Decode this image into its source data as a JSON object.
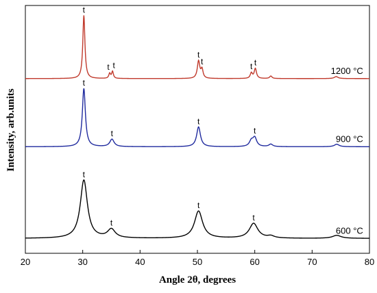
{
  "chart_data": {
    "type": "line",
    "xlabel": "Angle 2θ, degrees",
    "ylabel": "Intensity, arb.units",
    "xlim": [
      20,
      80
    ],
    "xticks": [
      20,
      30,
      40,
      50,
      60,
      70,
      80
    ],
    "y_ticks_shown": false,
    "grid": false,
    "series": [
      {
        "name": "1200 °C",
        "color": "#c0392b",
        "baseline": 0.705,
        "peaks": [
          {
            "x": 30.2,
            "h": 0.255,
            "w": 0.22
          },
          {
            "x": 34.7,
            "h": 0.02,
            "w": 0.18
          },
          {
            "x": 35.2,
            "h": 0.028,
            "w": 0.18
          },
          {
            "x": 50.2,
            "h": 0.07,
            "w": 0.26
          },
          {
            "x": 50.8,
            "h": 0.035,
            "w": 0.22
          },
          {
            "x": 59.4,
            "h": 0.022,
            "w": 0.22
          },
          {
            "x": 60.1,
            "h": 0.04,
            "w": 0.24
          },
          {
            "x": 62.8,
            "h": 0.01,
            "w": 0.25
          },
          {
            "x": 74.2,
            "h": 0.008,
            "w": 0.4
          }
        ]
      },
      {
        "name": "900 °C",
        "color": "#1f2a9e",
        "baseline": 0.43,
        "peaks": [
          {
            "x": 30.2,
            "h": 0.235,
            "w": 0.32
          },
          {
            "x": 35.1,
            "h": 0.03,
            "w": 0.45
          },
          {
            "x": 50.2,
            "h": 0.08,
            "w": 0.4
          },
          {
            "x": 59.4,
            "h": 0.022,
            "w": 0.4
          },
          {
            "x": 60.0,
            "h": 0.035,
            "w": 0.4
          },
          {
            "x": 62.8,
            "h": 0.01,
            "w": 0.4
          },
          {
            "x": 74.3,
            "h": 0.01,
            "w": 0.5
          }
        ]
      },
      {
        "name": "600 °C",
        "color": "#000000",
        "baseline": 0.06,
        "peaks": [
          {
            "x": 30.2,
            "h": 0.235,
            "w": 0.75
          },
          {
            "x": 35.0,
            "h": 0.035,
            "w": 0.8
          },
          {
            "x": 50.2,
            "h": 0.11,
            "w": 0.85
          },
          {
            "x": 59.8,
            "h": 0.06,
            "w": 0.9
          },
          {
            "x": 62.8,
            "h": 0.008,
            "w": 0.7
          },
          {
            "x": 74.3,
            "h": 0.012,
            "w": 0.9
          }
        ]
      }
    ],
    "annotations": [
      {
        "series": 0,
        "x": 30.2,
        "dx": 0,
        "text": "t"
      },
      {
        "series": 0,
        "x": 34.7,
        "dx": -2,
        "text": "t"
      },
      {
        "series": 0,
        "x": 35.2,
        "dx": 2,
        "text": "t"
      },
      {
        "series": 0,
        "x": 50.2,
        "dx": 0,
        "text": "t"
      },
      {
        "series": 0,
        "x": 50.8,
        "dx": 0,
        "text": "t"
      },
      {
        "series": 0,
        "x": 59.4,
        "dx": 0,
        "text": "t"
      },
      {
        "series": 0,
        "x": 60.1,
        "dx": 0,
        "text": "t"
      },
      {
        "series": 1,
        "x": 30.2,
        "dx": 0,
        "text": "t"
      },
      {
        "series": 1,
        "x": 35.1,
        "dx": 0,
        "text": "t"
      },
      {
        "series": 1,
        "x": 50.2,
        "dx": 0,
        "text": "t"
      },
      {
        "series": 1,
        "x": 60.0,
        "dx": 0,
        "text": "t"
      },
      {
        "series": 2,
        "x": 30.2,
        "dx": 0,
        "text": "t"
      },
      {
        "series": 2,
        "x": 35.0,
        "dx": 0,
        "text": "t"
      },
      {
        "series": 2,
        "x": 50.2,
        "dx": 0,
        "text": "t"
      },
      {
        "series": 2,
        "x": 59.8,
        "dx": 0,
        "text": "t"
      }
    ]
  }
}
